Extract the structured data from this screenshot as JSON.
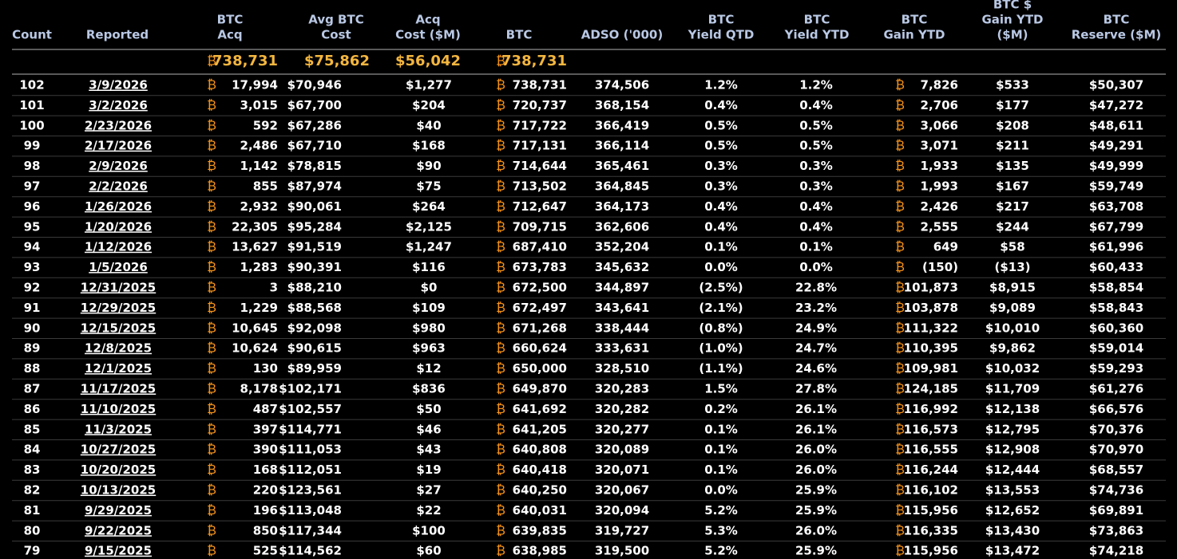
{
  "btc_symbol": "₿",
  "table": {
    "headers": [
      [
        "Count"
      ],
      [
        "Reported"
      ],
      [
        "BTC",
        "Acq"
      ],
      [
        "Avg BTC",
        "Cost"
      ],
      [
        "Acq",
        "Cost ($M)"
      ],
      [
        "BTC"
      ],
      [
        "ADSO ('000)"
      ],
      [
        "BTC",
        "Yield QTD"
      ],
      [
        "BTC",
        "Yield YTD"
      ],
      [
        "BTC",
        "Gain YTD"
      ],
      [
        "BTC $",
        "Gain YTD",
        "($M)"
      ],
      [
        "BTC",
        "Reserve ($M)"
      ]
    ],
    "summary": {
      "btc_acq": "738,731",
      "avg_cost": "$75,862",
      "acq_cost": "$56,042",
      "btc": "738,731"
    },
    "rows": [
      [
        "102",
        "3/9/2026",
        "17,994",
        "$70,946",
        "$1,277",
        "738,731",
        "374,506",
        "1.2%",
        "1.2%",
        "7,826",
        "$533",
        "$50,307"
      ],
      [
        "101",
        "3/2/2026",
        "3,015",
        "$67,700",
        "$204",
        "720,737",
        "368,154",
        "0.4%",
        "0.4%",
        "2,706",
        "$177",
        "$47,272"
      ],
      [
        "100",
        "2/23/2026",
        "592",
        "$67,286",
        "$40",
        "717,722",
        "366,419",
        "0.5%",
        "0.5%",
        "3,066",
        "$208",
        "$48,611"
      ],
      [
        "99",
        "2/17/2026",
        "2,486",
        "$67,710",
        "$168",
        "717,131",
        "366,114",
        "0.5%",
        "0.5%",
        "3,071",
        "$211",
        "$49,291"
      ],
      [
        "98",
        "2/9/2026",
        "1,142",
        "$78,815",
        "$90",
        "714,644",
        "365,461",
        "0.3%",
        "0.3%",
        "1,933",
        "$135",
        "$49,999"
      ],
      [
        "97",
        "2/2/2026",
        "855",
        "$87,974",
        "$75",
        "713,502",
        "364,845",
        "0.3%",
        "0.3%",
        "1,993",
        "$167",
        "$59,749"
      ],
      [
        "96",
        "1/26/2026",
        "2,932",
        "$90,061",
        "$264",
        "712,647",
        "364,173",
        "0.4%",
        "0.4%",
        "2,426",
        "$217",
        "$63,708"
      ],
      [
        "95",
        "1/20/2026",
        "22,305",
        "$95,284",
        "$2,125",
        "709,715",
        "362,606",
        "0.4%",
        "0.4%",
        "2,555",
        "$244",
        "$67,799"
      ],
      [
        "94",
        "1/12/2026",
        "13,627",
        "$91,519",
        "$1,247",
        "687,410",
        "352,204",
        "0.1%",
        "0.1%",
        "649",
        "$58",
        "$61,996"
      ],
      [
        "93",
        "1/5/2026",
        "1,283",
        "$90,391",
        "$116",
        "673,783",
        "345,632",
        "0.0%",
        "0.0%",
        "(150)",
        "($13)",
        "$60,433"
      ],
      [
        "92",
        "12/31/2025",
        "3",
        "$88,210",
        "$0",
        "672,500",
        "344,897",
        "(2.5%)",
        "22.8%",
        "101,873",
        "$8,915",
        "$58,854"
      ],
      [
        "91",
        "12/29/2025",
        "1,229",
        "$88,568",
        "$109",
        "672,497",
        "343,641",
        "(2.1%)",
        "23.2%",
        "103,878",
        "$9,089",
        "$58,843"
      ],
      [
        "90",
        "12/15/2025",
        "10,645",
        "$92,098",
        "$980",
        "671,268",
        "338,444",
        "(0.8%)",
        "24.9%",
        "111,322",
        "$10,010",
        "$60,360"
      ],
      [
        "89",
        "12/8/2025",
        "10,624",
        "$90,615",
        "$963",
        "660,624",
        "333,631",
        "(1.0%)",
        "24.7%",
        "110,395",
        "$9,862",
        "$59,014"
      ],
      [
        "88",
        "12/1/2025",
        "130",
        "$89,959",
        "$12",
        "650,000",
        "328,510",
        "(1.1%)",
        "24.6%",
        "109,981",
        "$10,032",
        "$59,293"
      ],
      [
        "87",
        "11/17/2025",
        "8,178",
        "$102,171",
        "$836",
        "649,870",
        "320,283",
        "1.5%",
        "27.8%",
        "124,185",
        "$11,709",
        "$61,276"
      ],
      [
        "86",
        "11/10/2025",
        "487",
        "$102,557",
        "$50",
        "641,692",
        "320,282",
        "0.2%",
        "26.1%",
        "116,992",
        "$12,138",
        "$66,576"
      ],
      [
        "85",
        "11/3/2025",
        "397",
        "$114,771",
        "$46",
        "641,205",
        "320,277",
        "0.1%",
        "26.1%",
        "116,573",
        "$12,795",
        "$70,376"
      ],
      [
        "84",
        "10/27/2025",
        "390",
        "$111,053",
        "$43",
        "640,808",
        "320,089",
        "0.1%",
        "26.0%",
        "116,555",
        "$12,908",
        "$70,970"
      ],
      [
        "83",
        "10/20/2025",
        "168",
        "$112,051",
        "$19",
        "640,418",
        "320,071",
        "0.1%",
        "26.0%",
        "116,244",
        "$12,444",
        "$68,557"
      ],
      [
        "82",
        "10/13/2025",
        "220",
        "$123,561",
        "$27",
        "640,250",
        "320,067",
        "0.0%",
        "25.9%",
        "116,102",
        "$13,553",
        "$74,736"
      ],
      [
        "81",
        "9/29/2025",
        "196",
        "$113,048",
        "$22",
        "640,031",
        "320,094",
        "5.2%",
        "25.9%",
        "115,956",
        "$12,652",
        "$69,891"
      ],
      [
        "80",
        "9/22/2025",
        "850",
        "$117,344",
        "$100",
        "639,835",
        "319,727",
        "5.3%",
        "26.0%",
        "116,335",
        "$13,430",
        "$73,863"
      ],
      [
        "79",
        "9/15/2025",
        "525",
        "$114,562",
        "$60",
        "638,985",
        "319,500",
        "5.2%",
        "25.9%",
        "115,956",
        "$13,472",
        "$74,218"
      ]
    ]
  }
}
